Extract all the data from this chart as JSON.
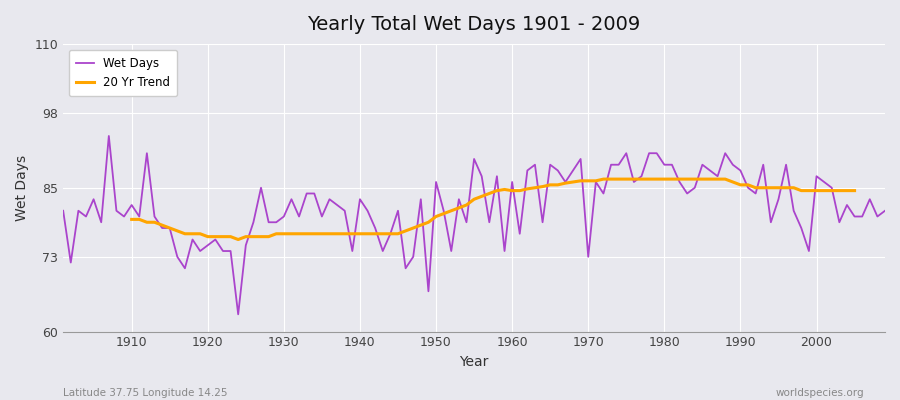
{
  "title": "Yearly Total Wet Days 1901 - 2009",
  "xlabel": "Year",
  "ylabel": "Wet Days",
  "bottom_left_label": "Latitude 37.75 Longitude 14.25",
  "bottom_right_label": "worldspecies.org",
  "ylim": [
    60,
    110
  ],
  "yticks": [
    60,
    73,
    85,
    98,
    110
  ],
  "xlim": [
    1901,
    2009
  ],
  "xticks": [
    1910,
    1920,
    1930,
    1940,
    1950,
    1960,
    1970,
    1980,
    1990,
    2000
  ],
  "wet_days_color": "#AA44CC",
  "trend_color": "#FFA500",
  "background_color": "#E8E8EE",
  "grid_color": "#FFFFFF",
  "legend_labels": [
    "Wet Days",
    "20 Yr Trend"
  ],
  "years": [
    1901,
    1902,
    1903,
    1904,
    1905,
    1906,
    1907,
    1908,
    1909,
    1910,
    1911,
    1912,
    1913,
    1914,
    1915,
    1916,
    1917,
    1918,
    1919,
    1920,
    1921,
    1922,
    1923,
    1924,
    1925,
    1926,
    1927,
    1928,
    1929,
    1930,
    1931,
    1932,
    1933,
    1934,
    1935,
    1936,
    1937,
    1938,
    1939,
    1940,
    1941,
    1942,
    1943,
    1944,
    1945,
    1946,
    1947,
    1948,
    1949,
    1950,
    1951,
    1952,
    1953,
    1954,
    1955,
    1956,
    1957,
    1958,
    1959,
    1960,
    1961,
    1962,
    1963,
    1964,
    1965,
    1966,
    1967,
    1968,
    1969,
    1970,
    1971,
    1972,
    1973,
    1974,
    1975,
    1976,
    1977,
    1978,
    1979,
    1980,
    1981,
    1982,
    1983,
    1984,
    1985,
    1986,
    1987,
    1988,
    1989,
    1990,
    1991,
    1992,
    1993,
    1994,
    1995,
    1996,
    1997,
    1998,
    1999,
    2000,
    2001,
    2002,
    2003,
    2004,
    2005,
    2006,
    2007,
    2008,
    2009
  ],
  "wet_days": [
    81,
    72,
    81,
    80,
    83,
    79,
    94,
    81,
    80,
    82,
    80,
    91,
    80,
    78,
    78,
    73,
    71,
    76,
    74,
    75,
    76,
    74,
    74,
    63,
    75,
    79,
    85,
    79,
    79,
    80,
    83,
    80,
    84,
    84,
    80,
    83,
    82,
    81,
    74,
    83,
    81,
    78,
    74,
    77,
    81,
    71,
    73,
    83,
    67,
    86,
    81,
    74,
    83,
    79,
    90,
    87,
    79,
    87,
    74,
    86,
    77,
    88,
    89,
    79,
    89,
    88,
    86,
    88,
    90,
    73,
    86,
    84,
    89,
    89,
    91,
    86,
    87,
    91,
    91,
    89,
    89,
    86,
    84,
    85,
    89,
    88,
    87,
    91,
    89,
    88,
    85,
    84,
    89,
    79,
    83,
    89,
    81,
    78,
    74,
    87,
    86,
    85,
    79,
    82,
    80,
    80,
    83,
    80,
    81
  ],
  "trend": [
    null,
    null,
    null,
    null,
    null,
    null,
    null,
    null,
    null,
    79.5,
    79.5,
    79,
    79,
    78.5,
    78,
    77.5,
    77,
    77,
    77,
    76.5,
    76.5,
    76.5,
    76.5,
    76,
    76.5,
    76.5,
    76.5,
    76.5,
    77,
    77,
    77,
    77,
    77,
    77,
    77,
    77,
    77,
    77,
    77,
    77,
    77,
    77,
    77,
    77,
    77,
    77.5,
    78,
    78.5,
    79,
    80,
    80.5,
    81,
    81.5,
    82,
    83,
    83.5,
    84,
    84.5,
    84.7,
    84.5,
    84.5,
    84.8,
    85,
    85.2,
    85.5,
    85.5,
    85.8,
    86,
    86.2,
    86.2,
    86.2,
    86.5,
    86.5,
    86.5,
    86.5,
    86.5,
    86.5,
    86.5,
    86.5,
    86.5,
    86.5,
    86.5,
    86.5,
    86.5,
    86.5,
    86.5,
    86.5,
    86.5,
    86,
    85.5,
    85.5,
    85,
    85,
    85,
    85,
    85,
    85,
    84.5,
    84.5,
    84.5,
    84.5,
    84.5,
    84.5,
    84.5,
    84.5,
    null,
    null,
    null,
    null
  ]
}
